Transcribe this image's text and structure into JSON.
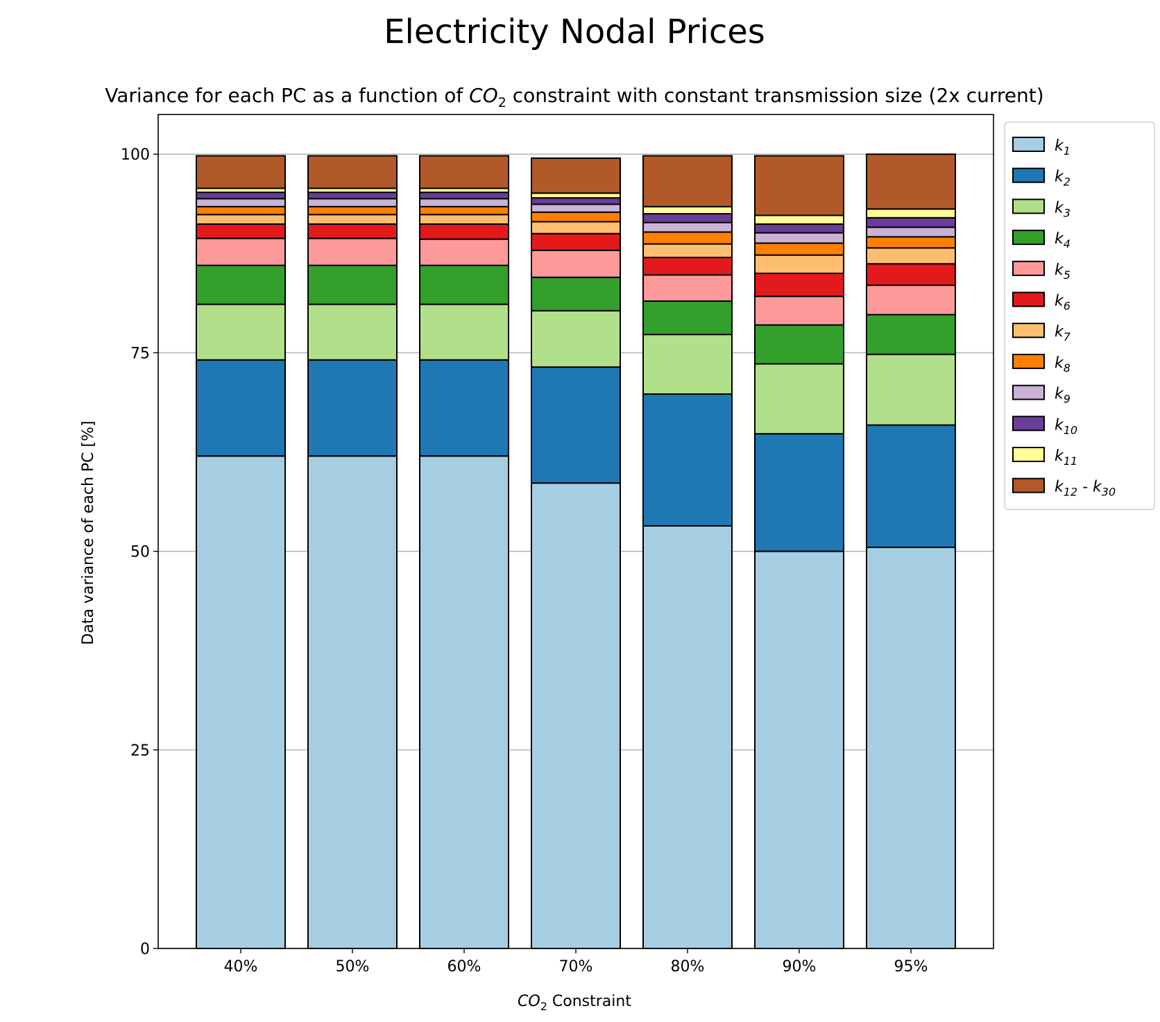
{
  "chart_data": {
    "type": "bar",
    "stacked": true,
    "suptitle": "Electricity Nodal Prices",
    "title": {
      "pre": "Variance for each PC as a function of ",
      "math_base": "CO",
      "math_sub": "2",
      "post": " constraint with constant transmission size (2x current)"
    },
    "xlabel": {
      "math_base": "CO",
      "math_sub": "2",
      "post": " Constraint"
    },
    "ylabel": "Data variance of each PC [%]",
    "ylim": [
      0,
      105
    ],
    "yticks": [
      "0",
      "25",
      "50",
      "75",
      "100"
    ],
    "grid": "y",
    "legend_position": "outside upper right",
    "categories": [
      "40%",
      "50%",
      "60%",
      "70%",
      "80%",
      "90%",
      "95%"
    ],
    "series": [
      {
        "name": "k",
        "sub": "1",
        "color": "#a6cee3",
        "values": [
          62.0,
          62.0,
          62.0,
          58.6,
          53.2,
          50.0,
          50.5
        ]
      },
      {
        "name": "k",
        "sub": "2",
        "color": "#1f78b4",
        "values": [
          12.1,
          12.1,
          12.1,
          14.6,
          16.6,
          14.8,
          15.4
        ]
      },
      {
        "name": "k",
        "sub": "3",
        "color": "#b2df8a",
        "values": [
          7.0,
          7.0,
          7.0,
          7.1,
          7.5,
          8.8,
          8.9
        ]
      },
      {
        "name": "k",
        "sub": "4",
        "color": "#33a02c",
        "values": [
          4.9,
          4.9,
          4.9,
          4.2,
          4.2,
          4.9,
          5.0
        ]
      },
      {
        "name": "k",
        "sub": "5",
        "color": "#fb9a99",
        "values": [
          3.4,
          3.4,
          3.3,
          3.4,
          3.3,
          3.6,
          3.7
        ]
      },
      {
        "name": "k",
        "sub": "6",
        "color": "#e31a1c",
        "values": [
          1.8,
          1.8,
          1.9,
          2.1,
          2.2,
          2.9,
          2.7
        ]
      },
      {
        "name": "k",
        "sub": "7",
        "color": "#fdbf6f",
        "values": [
          1.2,
          1.2,
          1.2,
          1.5,
          1.7,
          2.3,
          2.0
        ]
      },
      {
        "name": "k",
        "sub": "8",
        "color": "#ff7f00",
        "values": [
          1.0,
          1.0,
          1.0,
          1.2,
          1.5,
          1.5,
          1.4
        ]
      },
      {
        "name": "k",
        "sub": "9",
        "color": "#cab2d6",
        "values": [
          1.0,
          1.0,
          1.0,
          1.0,
          1.2,
          1.3,
          1.2
        ]
      },
      {
        "name": "k",
        "sub": "10",
        "color": "#6a3d9a",
        "values": [
          0.8,
          0.8,
          0.8,
          0.8,
          1.1,
          1.1,
          1.2
        ]
      },
      {
        "name": "k",
        "sub": "11",
        "color": "#ffff99",
        "values": [
          0.5,
          0.5,
          0.5,
          0.6,
          0.9,
          1.1,
          1.1
        ]
      },
      {
        "name": "k",
        "sub": "12",
        "name2": " - k",
        "sub2": "30",
        "color": "#b15928",
        "values": [
          4.1,
          4.1,
          4.1,
          4.4,
          6.4,
          7.5,
          6.9
        ]
      }
    ]
  }
}
